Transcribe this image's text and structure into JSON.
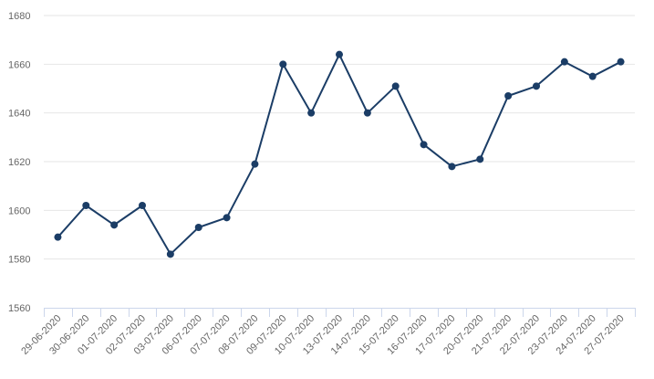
{
  "chart_data": {
    "type": "line",
    "title": "",
    "xlabel": "",
    "ylabel": "",
    "ylim": [
      1560,
      1680
    ],
    "yticks": [
      1560,
      1580,
      1600,
      1620,
      1640,
      1660,
      1680
    ],
    "grid": true,
    "legend": "none",
    "categories": [
      "29-06-2020",
      "30-06-2020",
      "01-07-2020",
      "02-07-2020",
      "03-07-2020",
      "06-07-2020",
      "07-07-2020",
      "08-07-2020",
      "09-07-2020",
      "10-07-2020",
      "13-07-2020",
      "14-07-2020",
      "15-07-2020",
      "16-07-2020",
      "17-07-2020",
      "20-07-2020",
      "21-07-2020",
      "22-07-2020",
      "23-07-2020",
      "24-07-2020",
      "27-07-2020"
    ],
    "series": [
      {
        "values": [
          1589,
          1602,
          1594,
          1602,
          1582,
          1593,
          1597,
          1619,
          1660,
          1640,
          1664,
          1640,
          1651,
          1627,
          1618,
          1621,
          1647,
          1651,
          1661,
          1655,
          1661
        ],
        "color": "#1b3d66"
      }
    ],
    "colors": {
      "grid": "#e6e6e6",
      "axis": "#ccd6eb",
      "text": "#666666",
      "line": "#1b3d66"
    }
  }
}
